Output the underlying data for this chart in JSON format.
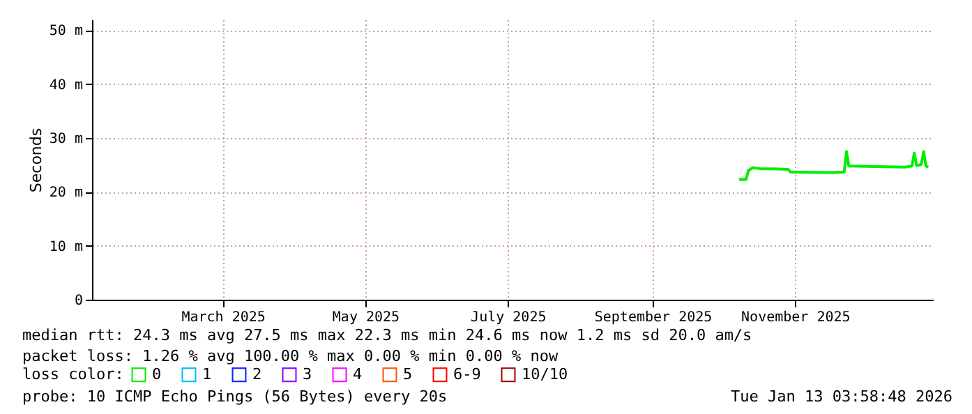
{
  "chart_data": {
    "type": "line",
    "ylabel": "Seconds",
    "xlim": [
      "2025-01-18",
      "2026-01-13"
    ],
    "xticks": [
      {
        "value": "2025-03-15",
        "label": "March 2025"
      },
      {
        "value": "2025-05-15",
        "label": "May 2025"
      },
      {
        "value": "2025-07-15",
        "label": "July 2025"
      },
      {
        "value": "2025-09-15",
        "label": "September 2025"
      },
      {
        "value": "2025-11-15",
        "label": "November 2025"
      }
    ],
    "ylim": [
      0,
      52
    ],
    "yticks": [
      {
        "value": 0,
        "label": "0"
      },
      {
        "value": 10,
        "label": "10 m"
      },
      {
        "value": 20,
        "label": "20 m"
      },
      {
        "value": 30,
        "label": "30 m"
      },
      {
        "value": 40,
        "label": "40 m"
      },
      {
        "value": 50,
        "label": "50 m"
      }
    ],
    "x": [
      "2025-10-22",
      "2025-10-25",
      "2025-10-26",
      "2025-10-28",
      "2025-10-31",
      "2025-11-06",
      "2025-11-12",
      "2025-11-13",
      "2025-11-27",
      "2025-12-02",
      "2025-12-06",
      "2025-12-07",
      "2025-12-08",
      "2025-12-20",
      "2026-01-01",
      "2026-01-04",
      "2026-01-05",
      "2026-01-06",
      "2026-01-08",
      "2026-01-09",
      "2026-01-10",
      "2026-01-11"
    ],
    "series": [
      {
        "name": "0",
        "color": "#00ee00",
        "values": [
          22.3,
          22.3,
          24.0,
          24.5,
          24.3,
          24.3,
          24.2,
          23.7,
          23.6,
          23.6,
          23.7,
          27.5,
          24.8,
          24.7,
          24.6,
          24.8,
          27.2,
          24.9,
          25.1,
          27.5,
          24.8,
          24.6
        ]
      },
      {
        "name": "1",
        "color": "#00bbff",
        "values": [
          null,
          null,
          null,
          null,
          null,
          null,
          null,
          null,
          null,
          null,
          null,
          null,
          null,
          null,
          null,
          null,
          null,
          null,
          null,
          null,
          null,
          null
        ]
      },
      {
        "name": "2",
        "color": "#0022ff",
        "values": [
          null,
          null,
          null,
          null,
          null,
          null,
          null,
          null,
          null,
          null,
          null,
          null,
          null,
          null,
          null,
          null,
          null,
          null,
          null,
          null,
          null,
          null
        ]
      },
      {
        "name": "3",
        "color": "#8a00ff",
        "values": [
          null,
          null,
          null,
          null,
          null,
          null,
          null,
          null,
          null,
          null,
          null,
          null,
          null,
          null,
          null,
          null,
          null,
          null,
          null,
          null,
          null,
          null
        ]
      },
      {
        "name": "4",
        "color": "#ff00ff",
        "values": [
          null,
          null,
          null,
          null,
          null,
          null,
          null,
          null,
          null,
          null,
          null,
          null,
          null,
          null,
          null,
          null,
          null,
          null,
          null,
          null,
          null,
          null
        ]
      },
      {
        "name": "5",
        "color": "#ff5500",
        "values": [
          null,
          null,
          null,
          null,
          null,
          null,
          null,
          null,
          null,
          null,
          null,
          null,
          null,
          null,
          null,
          null,
          null,
          null,
          null,
          null,
          null,
          null
        ]
      },
      {
        "name": "6-9",
        "color": "#ff0000",
        "values": [
          null,
          null,
          null,
          null,
          null,
          null,
          null,
          null,
          null,
          null,
          null,
          null,
          null,
          null,
          null,
          null,
          null,
          null,
          null,
          null,
          null,
          null
        ]
      },
      {
        "name": "10/10",
        "color": "#a10000",
        "values": [
          null,
          null,
          null,
          null,
          null,
          null,
          null,
          null,
          null,
          null,
          null,
          null,
          null,
          null,
          null,
          null,
          null,
          null,
          null,
          null,
          null,
          null
        ]
      }
    ],
    "legend": "bottom",
    "legend_title": "loss color:",
    "grid": true,
    "marker": "none",
    "line_style": "solid",
    "annotations": [
      "median rtt:  24.3 ms avg  27.5 ms max  22.3 ms min  24.6 ms now  1.2 ms sd  20.0   am/s",
      "packet loss: 1.26 % avg  100.00 % max  0.00 % min  0.00 % now",
      "probe:       10 ICMP Echo Pings (56 Bytes) every 20s",
      "Tue Jan 13 03:58:48 2026"
    ]
  }
}
